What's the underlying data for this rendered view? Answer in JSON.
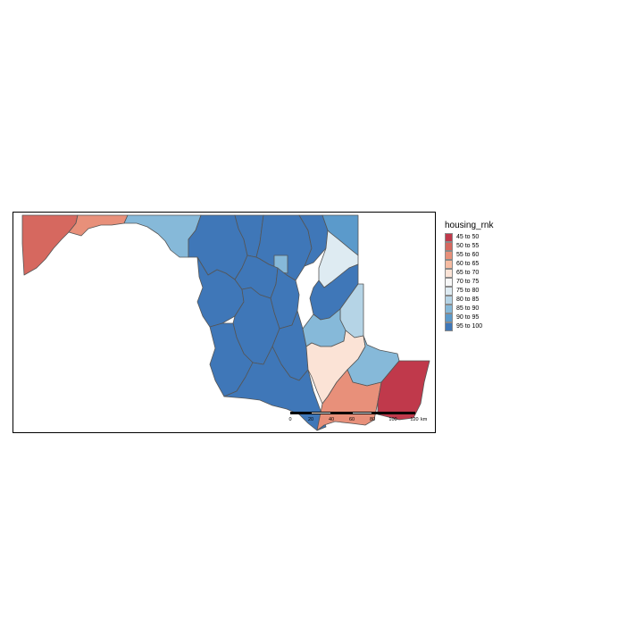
{
  "legend": {
    "title": "housing_rnk",
    "items": [
      {
        "label": "45 to 50",
        "color": "#c0394b"
      },
      {
        "label": "50 to 55",
        "color": "#d6685f"
      },
      {
        "label": "55 to 60",
        "color": "#e8907a"
      },
      {
        "label": "60 to 65",
        "color": "#f6bca2"
      },
      {
        "label": "65 to 70",
        "color": "#fbe3d6"
      },
      {
        "label": "70 to 75",
        "color": "#f7f7f7"
      },
      {
        "label": "75 to 80",
        "color": "#deebf2"
      },
      {
        "label": "80 to 85",
        "color": "#b5d4e6"
      },
      {
        "label": "85 to 90",
        "color": "#86b9d9"
      },
      {
        "label": "90 to 95",
        "color": "#5b9acb"
      },
      {
        "label": "95 to 100",
        "color": "#3f77b8"
      }
    ]
  },
  "scalebar": {
    "ticks": [
      "0",
      "20",
      "40",
      "60",
      "80",
      "100",
      "120"
    ],
    "unit": "km"
  },
  "regions": {
    "garrett": "50 to 55",
    "allegany": "55 to 60",
    "washington": "85 to 90",
    "frederick": "95 to 100",
    "carroll": "95 to 100",
    "baltimore_co": "95 to 100",
    "harford": "95 to 100",
    "cecil": "90 to 95",
    "baltimore_city": "85 to 90",
    "kent": "75 to 80",
    "queen_annes": "95 to 100",
    "caroline": "80 to 85",
    "talbot": "85 to 90",
    "montgomery": "95 to 100",
    "howard": "95 to 100",
    "anne_arundel": "95 to 100",
    "prince_georges": "95 to 100",
    "calvert": "95 to 100",
    "charles": "95 to 100",
    "st_marys": "95 to 100",
    "dorchester": "65 to 70",
    "wicomico": "85 to 90",
    "somerset": "55 to 60",
    "worcester": "45 to 50"
  }
}
